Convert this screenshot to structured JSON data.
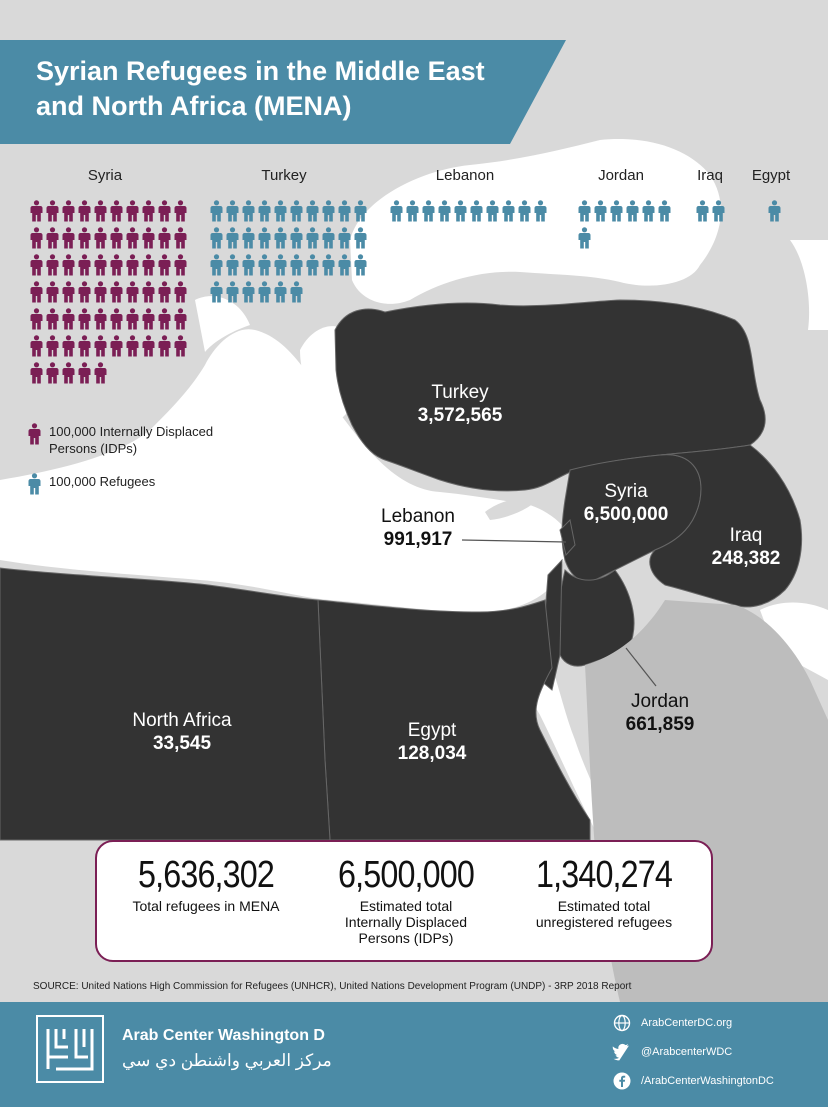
{
  "header": {
    "title": "Syrian Refugees in the Middle East and North Africa (MENA)"
  },
  "pictogram": {
    "columns": [
      {
        "label": "Syria",
        "count": 65,
        "kind": "idp"
      },
      {
        "label": "Turkey",
        "count": 36,
        "kind": "refugee"
      },
      {
        "label": "Lebanon",
        "count": 10,
        "kind": "refugee"
      },
      {
        "label": "Jordan",
        "count": 7,
        "kind": "refugee"
      },
      {
        "label": "Iraq",
        "count": 2,
        "kind": "refugee"
      },
      {
        "label": "Egypt",
        "count": 1,
        "kind": "refugee"
      }
    ],
    "colors": {
      "idp": "#7b1f55",
      "refugee": "#4b8ba6"
    }
  },
  "legend": {
    "idp": "100,000 Internally Displaced Persons (IDPs)",
    "refugee": "100,000 Refugees"
  },
  "map_labels": {
    "turkey": {
      "name": "Turkey",
      "value": "3,572,565"
    },
    "syria": {
      "name": "Syria",
      "value": "6,500,000"
    },
    "lebanon": {
      "name": "Lebanon",
      "value": "991,917"
    },
    "iraq": {
      "name": "Iraq",
      "value": "248,382"
    },
    "jordan": {
      "name": "Jordan",
      "value": "661,859"
    },
    "north_africa": {
      "name": "North Africa",
      "value": "33,545"
    },
    "egypt": {
      "name": "Egypt",
      "value": "128,034"
    }
  },
  "stats": [
    {
      "value": "5,636,302",
      "label": "Total refugees in MENA"
    },
    {
      "value": "6,500,000",
      "label": "Estimated total Internally Displaced Persons (IDPs)"
    },
    {
      "value": "1,340,274",
      "label": "Estimated total unregistered refugees"
    }
  ],
  "source": "SOURCE: United Nations High Commission for Refugees (UNHCR), United Nations Development Program (UNDP) - 3RP 2018 Report",
  "footer": {
    "org_en": "Arab Center Washington D",
    "org_ar": "مركز العربي واشنطن دي سي",
    "links": [
      {
        "icon": "globe-icon",
        "text": "ArabCenterDC.org"
      },
      {
        "icon": "twitter-icon",
        "text": "@ArabcenterWDC"
      },
      {
        "icon": "facebook-icon",
        "text": "/ArabCenterWashingtonDC"
      }
    ],
    "color": "#4b8ba6"
  },
  "map_colors": {
    "land": "#d9d9d9",
    "water": "#ffffff",
    "focus": "#333333",
    "border": "#666666"
  }
}
